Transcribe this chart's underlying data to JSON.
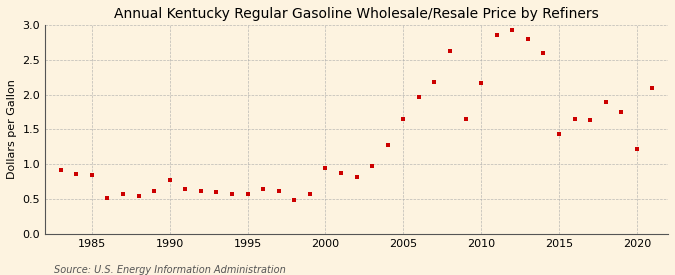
{
  "title": "Annual Kentucky Regular Gasoline Wholesale/Resale Price by Refiners",
  "ylabel": "Dollars per Gallon",
  "source": "Source: U.S. Energy Information Administration",
  "background_color": "#fdf3e0",
  "plot_bg_color": "#fdf3e0",
  "dot_color": "#cc0000",
  "years": [
    1983,
    1984,
    1985,
    1986,
    1987,
    1988,
    1989,
    1990,
    1991,
    1992,
    1993,
    1994,
    1995,
    1996,
    1997,
    1998,
    1999,
    2000,
    2001,
    2002,
    2003,
    2004,
    2005,
    2006,
    2007,
    2008,
    2009,
    2010,
    2011,
    2012,
    2013,
    2014,
    2015,
    2016,
    2017,
    2018,
    2019,
    2020,
    2021
  ],
  "values": [
    0.92,
    0.86,
    0.84,
    0.51,
    0.57,
    0.55,
    0.62,
    0.78,
    0.65,
    0.62,
    0.6,
    0.57,
    0.58,
    0.65,
    0.62,
    0.48,
    0.58,
    0.95,
    0.87,
    0.81,
    0.97,
    1.27,
    1.65,
    1.97,
    2.18,
    2.62,
    1.65,
    2.16,
    2.86,
    2.92,
    2.8,
    2.6,
    1.44,
    1.65,
    1.63,
    1.9,
    1.75,
    1.22,
    2.1
  ],
  "xlim": [
    1982,
    2022
  ],
  "ylim": [
    0.0,
    3.0
  ],
  "yticks": [
    0.0,
    0.5,
    1.0,
    1.5,
    2.0,
    2.5,
    3.0
  ],
  "xticks": [
    1985,
    1990,
    1995,
    2000,
    2005,
    2010,
    2015,
    2020
  ],
  "title_fontsize": 10,
  "label_fontsize": 8,
  "tick_fontsize": 8,
  "source_fontsize": 7
}
